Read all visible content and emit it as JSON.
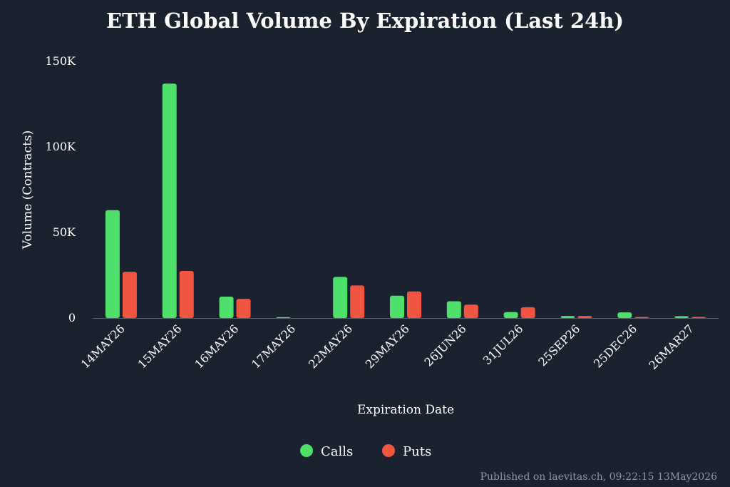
{
  "title": "ETH Global Volume By Expiration (Last 24h)",
  "footer": "Published on laevitas.ch, 09:22:15 13May2026",
  "chart_data": {
    "type": "bar",
    "title": "ETH Global Volume By Expiration (Last 24h)",
    "xlabel": "Expiration Date",
    "ylabel": "Volume (Contracts)",
    "ylim": [
      0,
      150000
    ],
    "yticks": [
      0,
      50000,
      100000,
      150000
    ],
    "ytick_labels": [
      "0",
      "50K",
      "100K",
      "150K"
    ],
    "grid": false,
    "legend_position": "bottom-center",
    "categories": [
      "14MAY26",
      "15MAY26",
      "16MAY26",
      "17MAY26",
      "22MAY26",
      "29MAY26",
      "26JUN26",
      "31JUL26",
      "25SEP26",
      "25DEC26",
      "26MAR27"
    ],
    "series": [
      {
        "name": "Calls",
        "color": "#4ee06a",
        "values": [
          63000,
          137000,
          12500,
          500,
          24000,
          13000,
          9800,
          3500,
          1200,
          3300,
          1100
        ]
      },
      {
        "name": "Puts",
        "color": "#f0563f",
        "values": [
          27000,
          27500,
          11200,
          0,
          19000,
          15500,
          7800,
          6300,
          1200,
          600,
          700
        ]
      }
    ]
  }
}
